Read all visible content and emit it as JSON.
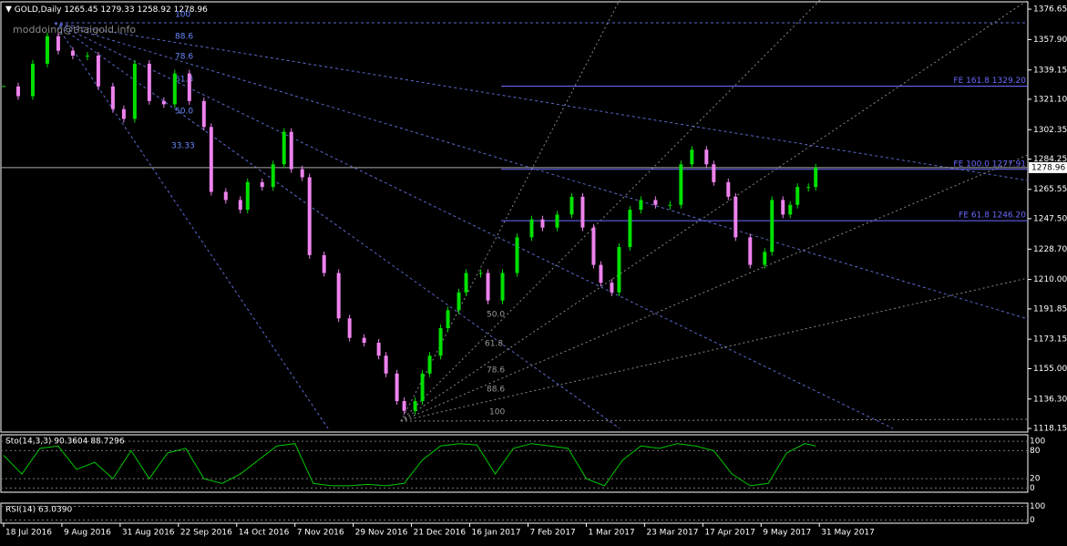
{
  "header": {
    "symbol": "GOLD,Daily",
    "ohlc": [
      1265.45,
      1279.33,
      1258.92,
      1278.96
    ],
    "watermark": "moddoing@thaigold.info"
  },
  "chart_data": [
    {
      "type": "candle",
      "ylim": [
        1116.5,
        1380.6
      ],
      "xlim": [
        -0.75,
        281.25
      ],
      "yticks": [
        {
          "value": 1376.65,
          "label": "1376.65"
        },
        {
          "value": 1357.9,
          "label": "1357.90"
        },
        {
          "value": 1339.15,
          "label": "1339.15"
        },
        {
          "value": 1321.1,
          "label": "1321.10"
        },
        {
          "value": 1302.35,
          "label": "1302.35"
        },
        {
          "value": 1284.25,
          "label": "1284.25"
        },
        {
          "value": 1265.55,
          "label": "1265.55"
        },
        {
          "value": 1247.5,
          "label": "1247.50"
        },
        {
          "value": 1228.7,
          "label": "1228.70"
        },
        {
          "value": 1210,
          "label": "1210.00"
        },
        {
          "value": 1191.85,
          "label": "1191.85"
        },
        {
          "value": 1173.15,
          "label": "1173.15"
        },
        {
          "value": 1155,
          "label": "1155.00"
        },
        {
          "value": 1136.3,
          "label": "1136.30"
        },
        {
          "value": 1118.15,
          "label": "1118.15"
        }
      ],
      "xticks": [
        {
          "value": 0,
          "label": "18 Jul 2016"
        },
        {
          "value": 16,
          "label": "9 Aug 2016"
        },
        {
          "value": 32,
          "label": "31 Aug 2016"
        },
        {
          "value": 48,
          "label": "22 Sep 2016"
        },
        {
          "value": 64,
          "label": "14 Oct 2016"
        },
        {
          "value": 80,
          "label": "7 Nov 2016"
        },
        {
          "value": 96,
          "label": "29 Nov 2016"
        },
        {
          "value": 112,
          "label": "21 Dec 2016"
        },
        {
          "value": 128,
          "label": "16 Jan 2017"
        },
        {
          "value": 144,
          "label": "7 Feb 2017"
        },
        {
          "value": 160,
          "label": "1 Mar 2017"
        },
        {
          "value": 176,
          "label": "23 Mar 2017"
        },
        {
          "value": 192,
          "label": "17 Apr 2017"
        },
        {
          "value": 208,
          "label": "9 May 2017"
        },
        {
          "value": 224,
          "label": "31 May 2017"
        }
      ],
      "series": [
        {
          "name": "Close",
          "up_color": "#00e000",
          "down_color": "#ee82ee",
          "x": [
            0,
            4,
            8,
            12,
            15,
            19,
            23,
            26,
            30,
            33,
            36,
            40,
            44,
            47,
            51,
            55,
            57,
            61,
            65,
            67,
            71,
            74,
            77,
            79,
            82,
            84,
            88,
            92,
            95,
            99,
            103,
            105,
            108,
            110,
            113,
            115,
            117,
            120,
            122,
            125,
            127,
            131,
            133,
            137,
            141,
            145,
            148,
            152,
            156,
            159,
            162,
            164,
            167,
            169,
            172,
            175,
            179,
            183,
            186,
            189,
            193,
            195,
            199,
            201,
            205,
            209,
            211,
            214,
            216,
            218,
            221,
            223
          ],
          "values": [
            1329,
            1323,
            1343,
            1360,
            1351,
            1348,
            1348,
            1329,
            1315,
            1309,
            1343,
            1320,
            1318,
            1337,
            1320,
            1304,
            1264,
            1259,
            1253,
            1270,
            1267,
            1281,
            1301,
            1278,
            1273,
            1225,
            1214,
            1186,
            1174,
            1171,
            1163,
            1152,
            1135,
            1129,
            1135,
            1152,
            1163,
            1180,
            1191,
            1202,
            1214,
            1214,
            1197,
            1214,
            1236,
            1247,
            1242,
            1250,
            1261,
            1242,
            1219,
            1208,
            1202,
            1230,
            1253,
            1259,
            1256,
            1256,
            1281,
            1290,
            1281,
            1270,
            1261,
            1236,
            1219,
            1227,
            1259,
            1250,
            1256,
            1267,
            1267,
            1279
          ]
        }
      ],
      "levels": [
        {
          "label": "FE 161.8 1329.20",
          "value": 1329.2
        },
        {
          "label": "FE 100.0  1277.91",
          "value": 1277.91
        },
        {
          "label": "FE 61.8 1246.20",
          "value": 1246.2
        }
      ],
      "last_price": 1278.96,
      "fan_labels_top": [
        "100",
        "88.6",
        "78.6",
        "61.8",
        "50.0",
        "33.33"
      ],
      "fan_labels_bottom": [
        "50.0",
        "61.8",
        "78.6",
        "88.6",
        "100"
      ]
    },
    {
      "type": "line",
      "title": "Sto(14,3,3) 90.3604 88.7296",
      "ylim": [
        -5,
        110
      ],
      "xlim": [
        -0.75,
        281.25
      ],
      "yticks": [
        100,
        80,
        20,
        0
      ],
      "series": [
        {
          "name": "Main",
          "color": "#00c800",
          "x": [
            0,
            5,
            10,
            15,
            20,
            25,
            30,
            35,
            40,
            45,
            50,
            55,
            60,
            65,
            70,
            75,
            80,
            85,
            90,
            95,
            100,
            105,
            110,
            115,
            120,
            125,
            130,
            135,
            140,
            145,
            150,
            155,
            160,
            165,
            170,
            175,
            180,
            185,
            190,
            195,
            200,
            205,
            210,
            215,
            220,
            223
          ],
          "values": [
            70,
            30,
            85,
            90,
            40,
            55,
            20,
            80,
            20,
            75,
            85,
            20,
            10,
            30,
            60,
            90,
            95,
            10,
            5,
            5,
            8,
            5,
            10,
            60,
            90,
            95,
            92,
            30,
            85,
            95,
            90,
            85,
            20,
            5,
            60,
            90,
            85,
            95,
            90,
            80,
            30,
            5,
            10,
            75,
            95,
            90
          ]
        }
      ]
    },
    {
      "type": "line",
      "title": "RSI(14) 63.0390",
      "ylim": [
        -10,
        110
      ],
      "xlim": [
        -0.75,
        281.25
      ],
      "yticks": [
        100,
        0
      ],
      "series": []
    }
  ]
}
